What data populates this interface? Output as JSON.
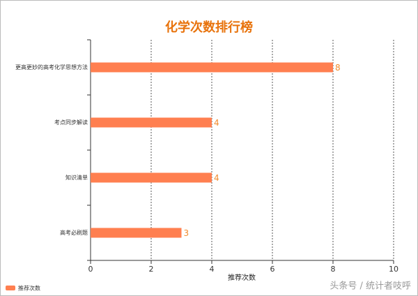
{
  "chart_data": {
    "type": "bar",
    "orientation": "horizontal",
    "title": "化学次数排行榜",
    "categories": [
      "更高更妙的高考化学思想方法",
      "考点同步解读",
      "知识清单",
      "高考必刷题"
    ],
    "series": [
      {
        "name": "推荐次数",
        "color": "#ff7f50",
        "values": [
          8,
          4,
          4,
          3
        ]
      }
    ],
    "x_label": "推荐次数",
    "xlim": [
      0,
      10
    ],
    "xticks": [
      0,
      2,
      4,
      6,
      8,
      10
    ],
    "grid": true,
    "legend": "bottom-left",
    "watermark": "头条号 / 统计者吱呼"
  }
}
